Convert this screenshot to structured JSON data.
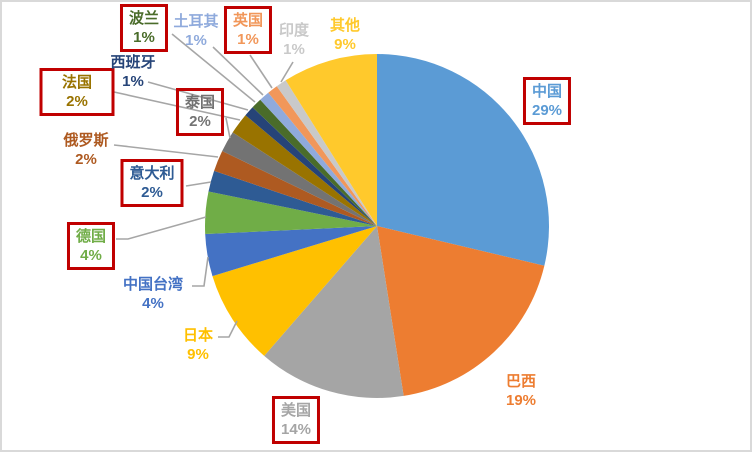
{
  "chart_data": {
    "type": "pie",
    "title": "",
    "legend": "none",
    "label_style": "outside-with-leader-lines",
    "start_angle_deg": 0,
    "direction": "clockwise",
    "series": [
      {
        "id": "china",
        "label": "中国",
        "value": 29,
        "display": "29%",
        "color": "#5B9BD5",
        "highlight_box": true
      },
      {
        "id": "brazil",
        "label": "巴西",
        "value": 19,
        "display": "19%",
        "color": "#ED7D31",
        "highlight_box": false
      },
      {
        "id": "usa",
        "label": "美国",
        "value": 14,
        "display": "14%",
        "color": "#A5A5A5",
        "highlight_box": true
      },
      {
        "id": "japan",
        "label": "日本",
        "value": 9,
        "display": "9%",
        "color": "#FFC000",
        "highlight_box": false
      },
      {
        "id": "taiwan-china",
        "label": "中国台湾",
        "value": 4,
        "display": "4%",
        "color": "#4472C4",
        "highlight_box": false
      },
      {
        "id": "germany",
        "label": "德国",
        "value": 4,
        "display": "4%",
        "color": "#70AD47",
        "highlight_box": true
      },
      {
        "id": "italy",
        "label": "意大利",
        "value": 2,
        "display": "2%",
        "color": "#2E5B94",
        "highlight_box": true
      },
      {
        "id": "russia",
        "label": "俄罗斯",
        "value": 2,
        "display": "2%",
        "color": "#AE5A21",
        "highlight_box": false
      },
      {
        "id": "thailand",
        "label": "泰国",
        "value": 2,
        "display": "2%",
        "color": "#737373",
        "highlight_box": true
      },
      {
        "id": "france",
        "label": "法国",
        "value": 2,
        "display": "2%",
        "color": "#997300",
        "highlight_box": true
      },
      {
        "id": "spain",
        "label": "西班牙",
        "value": 1,
        "display": "1%",
        "color": "#264478",
        "highlight_box": false
      },
      {
        "id": "poland",
        "label": "波兰",
        "value": 1,
        "display": "1%",
        "color": "#4A6C2A",
        "highlight_box": true
      },
      {
        "id": "turkey",
        "label": "土耳其",
        "value": 1,
        "display": "1%",
        "color": "#8FAADC",
        "highlight_box": false
      },
      {
        "id": "uk",
        "label": "英国",
        "value": 1,
        "display": "1%",
        "color": "#F1975A",
        "highlight_box": true
      },
      {
        "id": "india",
        "label": "印度",
        "value": 1,
        "display": "1%",
        "color": "#C9C9C9",
        "highlight_box": false
      },
      {
        "id": "other",
        "label": "其他",
        "value": 9,
        "display": "9%",
        "color": "#FFC92C",
        "highlight_box": false
      }
    ]
  },
  "style": {
    "background": "#FFFFFF",
    "canvas_border_color": "#D9D9D9",
    "leader_line_color": "#A6A6A6",
    "highlight_box_color": "#C00000"
  }
}
